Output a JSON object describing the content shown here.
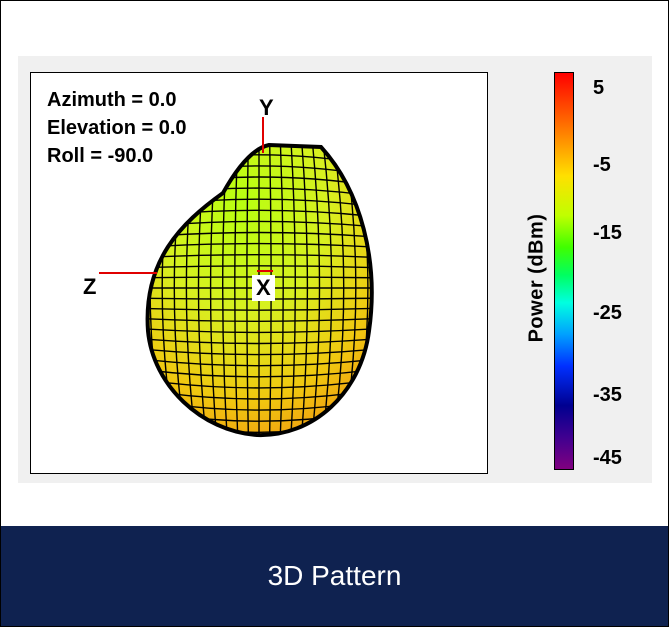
{
  "orientation": {
    "azimuth": "Azimuth = 0.0",
    "elevation": "Elevation = 0.0",
    "roll": "Roll = -90.0"
  },
  "axes": {
    "x": "X",
    "y": "Y",
    "z": "Z"
  },
  "colorbar": {
    "title": "Power  (dBm)",
    "ticks": [
      "5",
      "-5",
      "-15",
      "-25",
      "-35",
      "-45"
    ],
    "range": [
      -45,
      5
    ]
  },
  "footer": {
    "title": "3D Pattern"
  },
  "colors": {
    "footer_bg": "#0f2250",
    "axis": "#e00000",
    "mesh_line": "#000000"
  }
}
